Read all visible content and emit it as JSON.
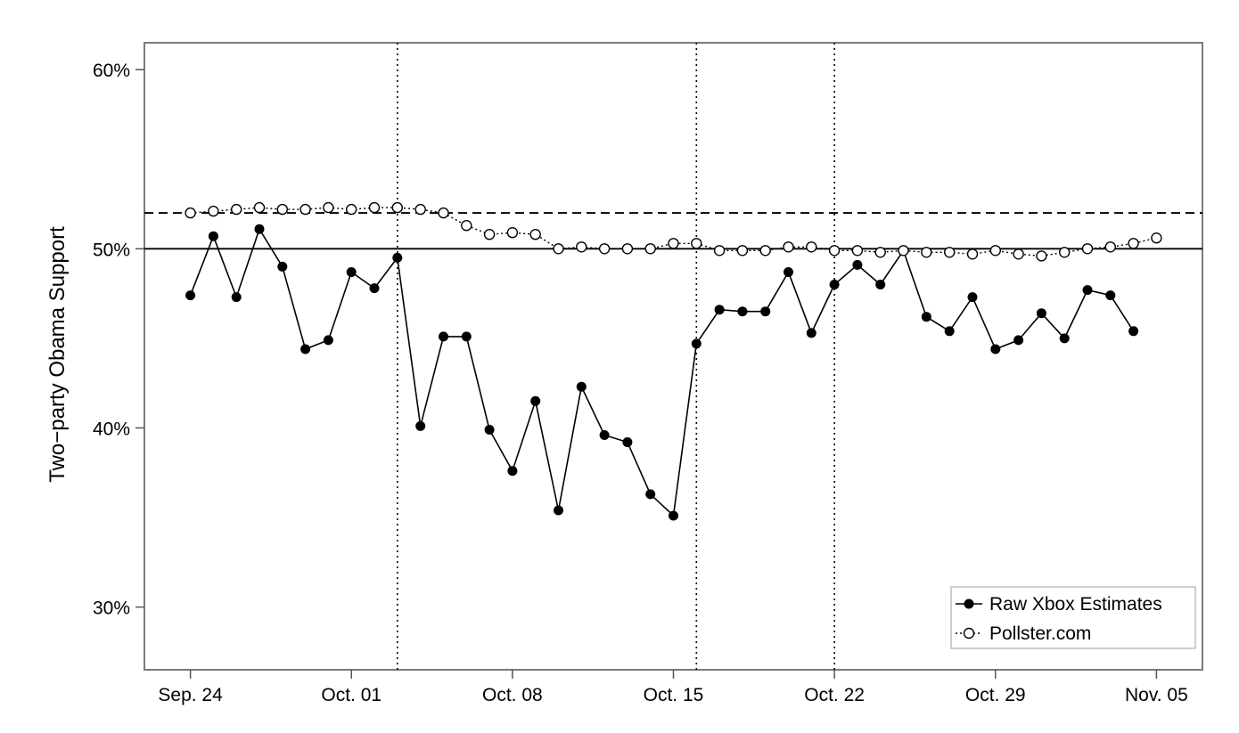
{
  "chart_data": {
    "type": "line",
    "ylabel": "Two−party Obama Support",
    "xlabel": "",
    "ylim": [
      26.5,
      61.5
    ],
    "x_range": [
      "2012-09-22",
      "2012-11-07"
    ],
    "y_ticks": [
      {
        "value": 30,
        "label": "30%"
      },
      {
        "value": 40,
        "label": "40%"
      },
      {
        "value": 50,
        "label": "50%"
      },
      {
        "value": 60,
        "label": "60%"
      }
    ],
    "x_ticks": [
      {
        "date": "2012-09-24",
        "label": "Sep. 24"
      },
      {
        "date": "2012-10-01",
        "label": "Oct. 01"
      },
      {
        "date": "2012-10-08",
        "label": "Oct. 08"
      },
      {
        "date": "2012-10-15",
        "label": "Oct. 15"
      },
      {
        "date": "2012-10-22",
        "label": "Oct. 22"
      },
      {
        "date": "2012-10-29",
        "label": "Oct. 29"
      },
      {
        "date": "2012-11-05",
        "label": "Nov. 05"
      }
    ],
    "reference_lines": [
      {
        "axis": "y",
        "value": 50,
        "style": "solid"
      },
      {
        "axis": "y",
        "value": 52,
        "style": "dashed"
      },
      {
        "axis": "x",
        "date": "2012-10-03",
        "style": "dotted"
      },
      {
        "axis": "x",
        "date": "2012-10-16",
        "style": "dotted"
      },
      {
        "axis": "x",
        "date": "2012-10-22",
        "style": "dotted"
      }
    ],
    "grid": false,
    "legend_position": "bottom-right",
    "series": [
      {
        "name": "Raw Xbox Estimates",
        "marker": "filled-circle",
        "line": "solid",
        "start_date": "2012-09-24",
        "values": [
          47.4,
          50.7,
          47.3,
          51.1,
          49.0,
          44.4,
          44.9,
          48.7,
          47.8,
          49.5,
          40.1,
          45.1,
          45.1,
          39.9,
          37.6,
          41.5,
          35.4,
          42.3,
          39.6,
          39.2,
          36.3,
          35.1,
          44.7,
          46.6,
          46.5,
          46.5,
          48.7,
          45.3,
          48.0,
          49.1,
          48.0,
          49.9,
          46.2,
          45.4,
          47.3,
          44.4,
          44.9,
          46.4,
          45.0,
          47.7,
          47.4,
          45.4
        ]
      },
      {
        "name": "Pollster.com",
        "marker": "open-circle",
        "line": "dotted",
        "start_date": "2012-09-24",
        "values": [
          52.0,
          52.1,
          52.2,
          52.3,
          52.2,
          52.2,
          52.3,
          52.2,
          52.3,
          52.3,
          52.2,
          52.0,
          51.3,
          50.8,
          50.9,
          50.8,
          50.0,
          50.1,
          50.0,
          50.0,
          50.0,
          50.3,
          50.3,
          49.9,
          49.9,
          49.9,
          50.1,
          50.1,
          49.9,
          49.9,
          49.8,
          49.9,
          49.8,
          49.8,
          49.7,
          49.9,
          49.7,
          49.6,
          49.8,
          50.0,
          50.1,
          50.3,
          50.6
        ]
      }
    ]
  }
}
